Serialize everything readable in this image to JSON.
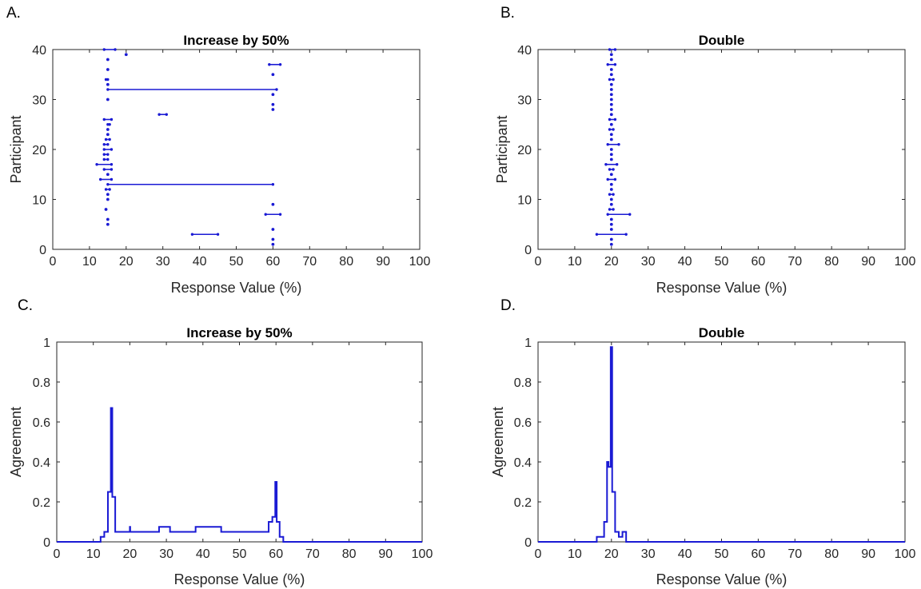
{
  "panel_letters": [
    "A.",
    "B.",
    "C.",
    "D."
  ],
  "colors": {
    "series": "#1a1ad4",
    "axes": "#262626",
    "background": "#ffffff"
  },
  "chart_data": [
    {
      "panel": "A.",
      "type": "scatter",
      "title": "Increase by 50%",
      "xlabel": "Response Value (%)",
      "ylabel": "Participant",
      "xlim": [
        0,
        100
      ],
      "ylim": [
        0,
        40
      ],
      "xticks": [
        0,
        10,
        20,
        30,
        40,
        50,
        60,
        70,
        80,
        90,
        100
      ],
      "yticks": [
        0,
        10,
        20,
        30,
        40
      ],
      "grid": false,
      "intervals": [
        {
          "y": 1,
          "lo": 60,
          "hi": 60
        },
        {
          "y": 2,
          "lo": 60,
          "hi": 60
        },
        {
          "y": 3,
          "lo": 38,
          "hi": 45
        },
        {
          "y": 4,
          "lo": 60,
          "hi": 60
        },
        {
          "y": 5,
          "lo": 15,
          "hi": 15
        },
        {
          "y": 6,
          "lo": 15,
          "hi": 15
        },
        {
          "y": 7,
          "lo": 58,
          "hi": 62
        },
        {
          "y": 8,
          "lo": 14.5,
          "hi": 14.5
        },
        {
          "y": 9,
          "lo": 60,
          "hi": 60
        },
        {
          "y": 10,
          "lo": 15,
          "hi": 15
        },
        {
          "y": 11,
          "lo": 15,
          "hi": 15
        },
        {
          "y": 12,
          "lo": 14.5,
          "hi": 15.5
        },
        {
          "y": 13,
          "lo": 15,
          "hi": 60
        },
        {
          "y": 14,
          "lo": 13,
          "hi": 16
        },
        {
          "y": 15,
          "lo": 15,
          "hi": 15
        },
        {
          "y": 16,
          "lo": 14,
          "hi": 16
        },
        {
          "y": 17,
          "lo": 12,
          "hi": 16
        },
        {
          "y": 18,
          "lo": 14,
          "hi": 15
        },
        {
          "y": 19,
          "lo": 14,
          "hi": 15
        },
        {
          "y": 20,
          "lo": 14,
          "hi": 16
        },
        {
          "y": 21,
          "lo": 14,
          "hi": 15
        },
        {
          "y": 22,
          "lo": 14.5,
          "hi": 15.5
        },
        {
          "y": 23,
          "lo": 15,
          "hi": 15
        },
        {
          "y": 24,
          "lo": 15,
          "hi": 15
        },
        {
          "y": 25,
          "lo": 15,
          "hi": 15.5
        },
        {
          "y": 26,
          "lo": 14,
          "hi": 16
        },
        {
          "y": 27,
          "lo": 29,
          "hi": 31
        },
        {
          "y": 28,
          "lo": 60,
          "hi": 60
        },
        {
          "y": 29,
          "lo": 60,
          "hi": 60
        },
        {
          "y": 30,
          "lo": 15,
          "hi": 15
        },
        {
          "y": 31,
          "lo": 60,
          "hi": 60
        },
        {
          "y": 32,
          "lo": 15,
          "hi": 61
        },
        {
          "y": 33,
          "lo": 15,
          "hi": 15
        },
        {
          "y": 34,
          "lo": 14.5,
          "hi": 15
        },
        {
          "y": 35,
          "lo": 60,
          "hi": 60
        },
        {
          "y": 36,
          "lo": 15,
          "hi": 15
        },
        {
          "y": 37,
          "lo": 59,
          "hi": 62
        },
        {
          "y": 38,
          "lo": 15,
          "hi": 15
        },
        {
          "y": 39,
          "lo": 20,
          "hi": 20
        },
        {
          "y": 40,
          "lo": 14,
          "hi": 17
        }
      ]
    },
    {
      "panel": "B.",
      "type": "scatter",
      "title": "Double",
      "xlabel": "Response Value (%)",
      "ylabel": "Participant",
      "xlim": [
        0,
        100
      ],
      "ylim": [
        0,
        40
      ],
      "xticks": [
        0,
        10,
        20,
        30,
        40,
        50,
        60,
        70,
        80,
        90,
        100
      ],
      "yticks": [
        0,
        10,
        20,
        30,
        40
      ],
      "grid": false,
      "intervals": [
        {
          "y": 1,
          "lo": 20,
          "hi": 20
        },
        {
          "y": 2,
          "lo": 20,
          "hi": 20
        },
        {
          "y": 3,
          "lo": 16,
          "hi": 24
        },
        {
          "y": 4,
          "lo": 20,
          "hi": 20
        },
        {
          "y": 5,
          "lo": 20,
          "hi": 20
        },
        {
          "y": 6,
          "lo": 20,
          "hi": 20
        },
        {
          "y": 7,
          "lo": 19,
          "hi": 25
        },
        {
          "y": 8,
          "lo": 19.5,
          "hi": 20.5
        },
        {
          "y": 9,
          "lo": 20,
          "hi": 20
        },
        {
          "y": 10,
          "lo": 20,
          "hi": 20
        },
        {
          "y": 11,
          "lo": 19.5,
          "hi": 20.5
        },
        {
          "y": 12,
          "lo": 20,
          "hi": 20
        },
        {
          "y": 13,
          "lo": 20,
          "hi": 20
        },
        {
          "y": 14,
          "lo": 19,
          "hi": 21
        },
        {
          "y": 15,
          "lo": 20,
          "hi": 20
        },
        {
          "y": 16,
          "lo": 19.5,
          "hi": 20.5
        },
        {
          "y": 17,
          "lo": 18.5,
          "hi": 21.5
        },
        {
          "y": 18,
          "lo": 20,
          "hi": 20
        },
        {
          "y": 19,
          "lo": 20,
          "hi": 20
        },
        {
          "y": 20,
          "lo": 20,
          "hi": 20
        },
        {
          "y": 21,
          "lo": 19,
          "hi": 22
        },
        {
          "y": 22,
          "lo": 20,
          "hi": 20
        },
        {
          "y": 23,
          "lo": 20,
          "hi": 20
        },
        {
          "y": 24,
          "lo": 19.5,
          "hi": 20.5
        },
        {
          "y": 25,
          "lo": 20,
          "hi": 20
        },
        {
          "y": 26,
          "lo": 19.5,
          "hi": 21
        },
        {
          "y": 27,
          "lo": 20,
          "hi": 20
        },
        {
          "y": 28,
          "lo": 20,
          "hi": 20
        },
        {
          "y": 29,
          "lo": 20,
          "hi": 20
        },
        {
          "y": 30,
          "lo": 20,
          "hi": 20
        },
        {
          "y": 31,
          "lo": 20,
          "hi": 20
        },
        {
          "y": 32,
          "lo": 20,
          "hi": 20
        },
        {
          "y": 33,
          "lo": 20,
          "hi": 20
        },
        {
          "y": 34,
          "lo": 19.5,
          "hi": 20.5
        },
        {
          "y": 35,
          "lo": 20,
          "hi": 20
        },
        {
          "y": 36,
          "lo": 20,
          "hi": 20
        },
        {
          "y": 37,
          "lo": 19,
          "hi": 21
        },
        {
          "y": 38,
          "lo": 20,
          "hi": 20
        },
        {
          "y": 39,
          "lo": 20,
          "hi": 20
        },
        {
          "y": 40,
          "lo": 19.5,
          "hi": 21
        }
      ]
    },
    {
      "panel": "C.",
      "type": "line",
      "title": "Increase by 50%",
      "xlabel": "Response Value (%)",
      "ylabel": "Agreement",
      "xlim": [
        0,
        100
      ],
      "ylim": [
        0,
        1
      ],
      "xticks": [
        0,
        10,
        20,
        30,
        40,
        50,
        60,
        70,
        80,
        90,
        100
      ],
      "yticks": [
        0,
        0.2,
        0.4,
        0.6,
        0.8,
        1
      ],
      "ytick_labels": [
        "0",
        "0.2",
        "0.4",
        "0.6",
        "0.8",
        "1"
      ],
      "grid": false,
      "x": [
        0,
        12,
        12,
        13,
        13,
        14,
        14,
        14.8,
        14.8,
        15.2,
        15.2,
        16,
        16,
        20,
        20,
        20.1,
        20.1,
        28,
        28,
        31,
        31,
        38,
        38,
        45,
        45,
        58,
        58,
        59,
        59,
        59.8,
        59.8,
        60.2,
        60.2,
        61,
        61,
        62,
        62,
        100
      ],
      "y": [
        0,
        0,
        0.025,
        0.025,
        0.05,
        0.05,
        0.25,
        0.25,
        0.67,
        0.67,
        0.225,
        0.225,
        0.05,
        0.05,
        0.075,
        0.075,
        0.05,
        0.05,
        0.075,
        0.075,
        0.05,
        0.05,
        0.075,
        0.075,
        0.05,
        0.05,
        0.1,
        0.1,
        0.125,
        0.125,
        0.3,
        0.3,
        0.1,
        0.1,
        0.025,
        0.025,
        0,
        0
      ]
    },
    {
      "panel": "D.",
      "type": "line",
      "title": "Double",
      "xlabel": "Response Value (%)",
      "ylabel": "Agreement",
      "xlim": [
        0,
        100
      ],
      "ylim": [
        0,
        1
      ],
      "xticks": [
        0,
        10,
        20,
        30,
        40,
        50,
        60,
        70,
        80,
        90,
        100
      ],
      "yticks": [
        0,
        0.2,
        0.4,
        0.6,
        0.8,
        1
      ],
      "ytick_labels": [
        "0",
        "0.2",
        "0.4",
        "0.6",
        "0.8",
        "1"
      ],
      "grid": false,
      "x": [
        0,
        16,
        16,
        18,
        18,
        18.8,
        18.8,
        19.2,
        19.2,
        19.8,
        19.8,
        20.2,
        20.2,
        21,
        21,
        22,
        22,
        23,
        23,
        24,
        24,
        100
      ],
      "y": [
        0,
        0,
        0.025,
        0.025,
        0.1,
        0.1,
        0.4,
        0.4,
        0.375,
        0.375,
        0.975,
        0.975,
        0.25,
        0.25,
        0.05,
        0.05,
        0.025,
        0.025,
        0.05,
        0.05,
        0,
        0
      ]
    }
  ]
}
